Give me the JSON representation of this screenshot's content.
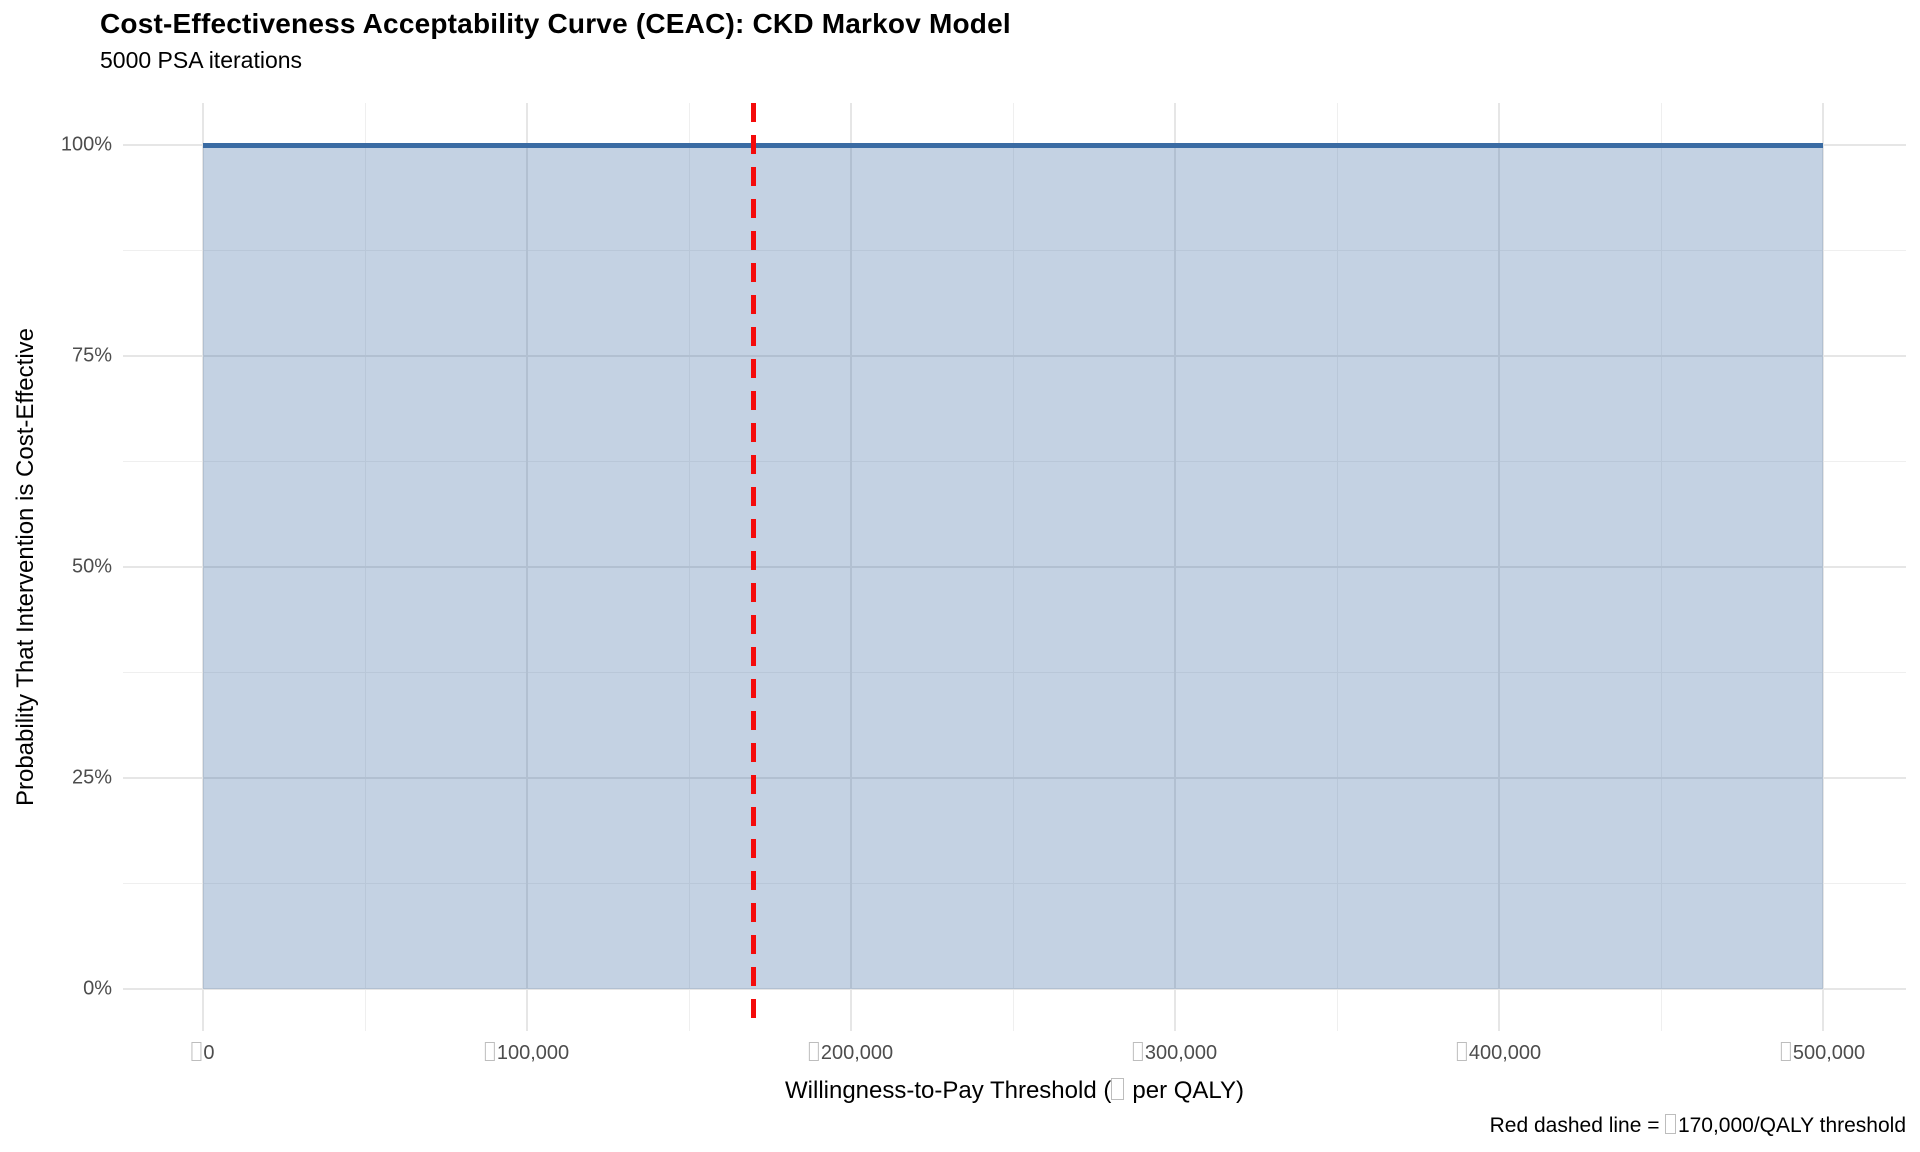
{
  "chart_data": {
    "type": "area",
    "title": "Cost-Effectiveness Acceptability Curve (CEAC): CKD Markov Model",
    "subtitle": "5000 PSA iterations",
    "xlabel": "Willingness-to-Pay Threshold (□ per QALY)",
    "ylabel": "Probability That Intervention is Cost-Effective",
    "caption": "Red dashed line = □170,000/QALY threshold",
    "xlim": [
      0,
      500000
    ],
    "ylim": [
      0,
      1
    ],
    "x_ticks": [
      {
        "value": 0,
        "label": "□0"
      },
      {
        "value": 100000,
        "label": "□100,000"
      },
      {
        "value": 200000,
        "label": "□200,000"
      },
      {
        "value": 300000,
        "label": "□300,000"
      },
      {
        "value": 400000,
        "label": "□400,000"
      },
      {
        "value": 500000,
        "label": "□500,000"
      }
    ],
    "x_minor_ticks": [
      50000,
      150000,
      250000,
      350000,
      450000
    ],
    "y_ticks": [
      {
        "value": 0,
        "label": "0%"
      },
      {
        "value": 0.25,
        "label": "25%"
      },
      {
        "value": 0.5,
        "label": "50%"
      },
      {
        "value": 0.75,
        "label": "75%"
      },
      {
        "value": 1,
        "label": "100%"
      }
    ],
    "y_minor_ticks": [
      0.125,
      0.375,
      0.625,
      0.875
    ],
    "series": [
      {
        "name": "Intervention cost-effective probability",
        "x": [
          0,
          50000,
          100000,
          150000,
          200000,
          250000,
          300000,
          350000,
          400000,
          450000,
          500000
        ],
        "y": [
          1.0,
          1.0,
          1.0,
          1.0,
          1.0,
          1.0,
          1.0,
          1.0,
          1.0,
          1.0,
          1.0
        ]
      }
    ],
    "reference_line": {
      "orientation": "vertical",
      "x": 170000,
      "style": "dashed",
      "color": "#f40b0b",
      "meaning": "□170,000/QALY threshold"
    },
    "grid": "major and minor, light gray, no axis lines or tick marks",
    "legend_position": "none",
    "colors": {
      "curve_line": "#3a6ba3",
      "area_fill": "rgba(58,107,163,0.30)",
      "threshold_line": "#f40b0b",
      "grid_major": "#e6e6e6",
      "grid_minor": "#efefef",
      "tick_text": "#4d4d4d",
      "text": "#000000"
    }
  }
}
